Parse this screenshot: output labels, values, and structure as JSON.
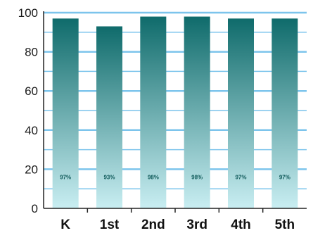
{
  "chart_data": {
    "type": "bar",
    "categories": [
      "K",
      "1st",
      "2nd",
      "3rd",
      "4th",
      "5th"
    ],
    "values": [
      97,
      93,
      98,
      98,
      97,
      97
    ],
    "data_labels": [
      "97%",
      "93%",
      "98%",
      "98%",
      "97%",
      "97%"
    ],
    "ylim": [
      0,
      100
    ],
    "yticks": [
      0,
      20,
      40,
      60,
      80,
      100
    ],
    "ytick_labels": [
      "0",
      "20",
      "40",
      "60",
      "80",
      "100"
    ],
    "grid": true,
    "colors": {
      "bar_top": "#0f6b6b",
      "bar_bottom": "#c9eef2",
      "grid_line": "#7cc4ec",
      "axis": "#222222",
      "data_label": "#0f5a5a"
    }
  }
}
